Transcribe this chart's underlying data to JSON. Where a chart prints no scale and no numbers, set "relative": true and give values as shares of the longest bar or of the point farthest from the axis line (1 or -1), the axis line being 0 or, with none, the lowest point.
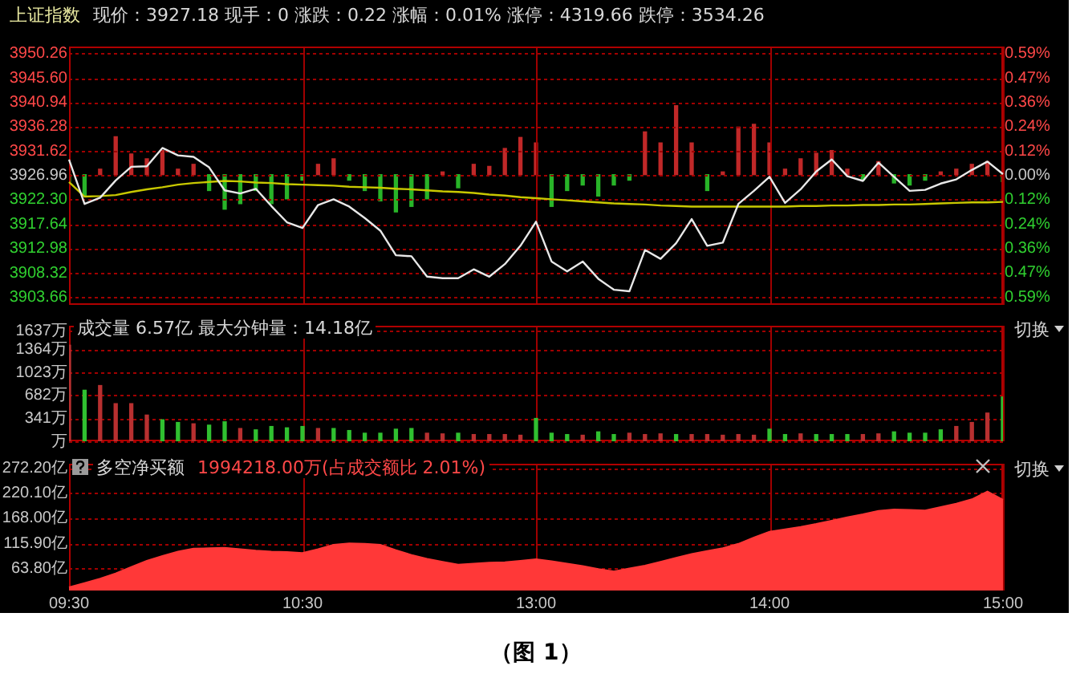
{
  "chart_data": [
    {
      "type": "line",
      "title": "上证指数",
      "subtitle": "现价：3927.18 现手：0 涨跌：0.22 涨幅：0.01% 涨停：4319.66 跌停：3534.26",
      "categories": [
        null,
        null,
        null,
        null,
        null,
        null,
        null,
        null,
        null,
        null,
        null,
        null,
        null,
        null,
        null,
        null,
        null,
        null,
        null,
        null,
        null,
        null,
        null,
        null,
        null,
        null,
        null,
        null,
        null,
        null,
        null,
        null,
        null,
        null,
        null,
        null,
        null,
        null,
        null,
        null,
        null,
        null,
        null,
        null,
        null,
        null,
        null,
        null,
        null,
        null,
        null,
        null,
        null,
        null,
        null,
        null,
        null,
        null,
        null,
        null,
        null
      ],
      "ylim": [
        3902.2,
        3951.6
      ],
      "yticks": [
        3903.66,
        3908.32,
        3912.98,
        3917.64,
        {
          "value": 3922.3,
          "label": "3922.30"
        },
        3926.96,
        3931.62,
        3936.28,
        3940.94,
        {
          "value": 3945.6,
          "label": "3945.60"
        },
        3950.26
      ],
      "y2lim": [
        -0.631,
        0.627
      ],
      "y2ticks": [
        {
          "value": -0.593,
          "label": "0.59%"
        },
        {
          "value": -0.474,
          "label": "0.47%"
        },
        {
          "value": -0.356,
          "label": "0.36%"
        },
        {
          "value": -0.237,
          "label": "0.24%"
        },
        {
          "value": -0.119,
          "label": "0.12%"
        },
        {
          "value": 0,
          "label": "0.00%"
        },
        {
          "value": 0.119,
          "label": "0.12%"
        },
        {
          "value": 0.237,
          "label": "0.24%"
        },
        {
          "value": 0.356,
          "label": "0.36%"
        },
        {
          "value": 0.474,
          "label": "0.47%"
        },
        {
          "value": 0.593,
          "label": "0.59%"
        }
      ],
      "grid": true,
      "tick_labels": "y",
      "series": [
        {
          "color": "#e8e8e8",
          "values": [
            3930.0,
            3921.5,
            3922.7,
            3926.0,
            3928.6,
            3928.7,
            3932.2,
            3930.8,
            3930.5,
            3928.5,
            3924.1,
            3923.5,
            3924.4,
            3921.1,
            3918.0,
            3916.9,
            3921.3,
            3922.4,
            3921.0,
            3918.8,
            3916.4,
            3911.7,
            3911.5,
            3907.6,
            3907.3,
            3907.3,
            3909.0,
            3907.6,
            3910.0,
            3913.5,
            3918.1,
            3910.5,
            3908.6,
            3910.5,
            3907.2,
            3905.1,
            3904.8,
            3912.7,
            3911.0,
            3914.0,
            3918.6,
            3913.5,
            3914.1,
            3921.5,
            3924.0,
            3926.7,
            3921.7,
            3924.3,
            3927.7,
            3930.0,
            3926.8,
            3925.9,
            3929.4,
            3926.7,
            3924.0,
            3924.2,
            3925.4,
            3926.2,
            3928.0,
            3929.6,
            3927.2
          ]
        },
        {
          "color": "#c8c800",
          "values": [
            3925.7,
            3922.9,
            3923.0,
            3923.2,
            3923.8,
            3924.3,
            3924.7,
            3925.2,
            3925.5,
            3925.7,
            3925.9,
            3925.8,
            3925.6,
            3925.5,
            3925.3,
            3925.2,
            3925.1,
            3925.0,
            3924.8,
            3924.7,
            3924.6,
            3924.4,
            3924.3,
            3924.1,
            3923.9,
            3923.8,
            3923.6,
            3923.3,
            3923.1,
            3922.8,
            3922.6,
            3922.4,
            3922.2,
            3922.0,
            3921.8,
            3921.6,
            3921.5,
            3921.4,
            3921.2,
            3921.1,
            3921.0,
            3921.0,
            3921.0,
            3921.0,
            3921.0,
            3921.0,
            3921.0,
            3921.1,
            3921.1,
            3921.2,
            3921.2,
            3921.3,
            3921.3,
            3921.4,
            3921.4,
            3921.5,
            3921.6,
            3921.7,
            3921.8,
            3921.8,
            3921.9
          ]
        }
      ]
    },
    {
      "type": "bar",
      "relative": true,
      "tick_labels": false,
      "categories": [
        null,
        null,
        null,
        null,
        null,
        null,
        null,
        null,
        null,
        null,
        null,
        null,
        null,
        null,
        null,
        null,
        null,
        null,
        null,
        null,
        null,
        null,
        null,
        null,
        null,
        null,
        null,
        null,
        null,
        null,
        null,
        null,
        null,
        null,
        null,
        null,
        null,
        null,
        null,
        null,
        null,
        null,
        null,
        null,
        null,
        null,
        null,
        null,
        null,
        null,
        null,
        null,
        null,
        null,
        null,
        null,
        null,
        null,
        null,
        null,
        null
      ],
      "values": [
        -0.1,
        -0.3,
        0.08,
        0.55,
        0.3,
        0.23,
        0.35,
        0.08,
        0.15,
        -0.23,
        -0.5,
        -0.42,
        -0.23,
        -0.42,
        -0.35,
        -0.08,
        0.15,
        0.23,
        -0.08,
        -0.23,
        -0.38,
        -0.54,
        -0.46,
        -0.35,
        0.04,
        -0.19,
        0.15,
        0.12,
        0.38,
        0.54,
        0.46,
        -0.46,
        -0.23,
        -0.15,
        -0.31,
        -0.15,
        -0.08,
        0.62,
        0.46,
        1,
        0.46,
        -0.23,
        0.04,
        0.69,
        0.73,
        0.46,
        0.08,
        0.23,
        0.31,
        0.35,
        0.08,
        -0.08,
        0.19,
        -0.12,
        -0.15,
        -0.08,
        0.04,
        0.08,
        0.15,
        0.19,
        -0.1
      ],
      "colors": [
        "#28b428",
        "#28b428",
        "#c02828",
        "#c02828",
        "#c02828",
        "#c02828",
        "#c02828",
        "#c02828",
        "#c02828",
        "#28b428",
        "#28b428",
        "#28b428",
        "#28b428",
        "#28b428",
        "#28b428",
        "#28b428",
        "#c02828",
        "#c02828",
        "#28b428",
        "#28b428",
        "#28b428",
        "#28b428",
        "#28b428",
        "#28b428",
        "#c02828",
        "#28b428",
        "#c02828",
        "#c02828",
        "#c02828",
        "#c02828",
        "#c02828",
        "#28b428",
        "#28b428",
        "#28b428",
        "#28b428",
        "#28b428",
        "#28b428",
        "#c02828",
        "#c02828",
        "#c02828",
        "#c02828",
        "#28b428",
        "#c02828",
        "#c02828",
        "#c02828",
        "#c02828",
        "#c02828",
        "#c02828",
        "#c02828",
        "#c02828",
        "#c02828",
        "#28b428",
        "#c02828",
        "#28b428",
        "#28b428",
        "#28b428",
        "#c02828",
        "#c02828",
        "#c02828",
        "#c02828",
        "#28b428"
      ]
    },
    {
      "type": "bar",
      "title": "成交量 6.57亿 最大分钟量：14.18亿",
      "annotations": [
        "切换"
      ],
      "grid": true,
      "tick_labels": "y",
      "categories": [
        null,
        null,
        null,
        null,
        null,
        null,
        null,
        null,
        null,
        null,
        null,
        null,
        null,
        null,
        null,
        null,
        null,
        null,
        null,
        null,
        null,
        null,
        null,
        null,
        null,
        null,
        null,
        null,
        null,
        null,
        null,
        null,
        null,
        null,
        null,
        null,
        null,
        null,
        null,
        null,
        null,
        null,
        null,
        null,
        null,
        null,
        null,
        null,
        null,
        null,
        null,
        null,
        null,
        null,
        null,
        null,
        null,
        null,
        null,
        null,
        null
      ],
      "ylim": [
        0,
        1720
      ],
      "yticks": [
        {
          "value": 0,
          "label": "万"
        },
        {
          "value": 341,
          "label": "341万"
        },
        {
          "value": 682,
          "label": "682万"
        },
        {
          "value": 1023,
          "label": "1023万"
        },
        {
          "value": 1364,
          "label": "1364万"
        },
        {
          "value": 1637,
          "label": "1637万"
        }
      ],
      "values": [
        1430,
        760,
        830,
        560,
        560,
        390,
        320,
        280,
        260,
        240,
        290,
        190,
        170,
        220,
        200,
        220,
        190,
        190,
        160,
        120,
        120,
        180,
        190,
        120,
        110,
        120,
        100,
        100,
        100,
        90,
        340,
        120,
        100,
        90,
        140,
        100,
        120,
        100,
        110,
        100,
        100,
        100,
        90,
        100,
        90,
        180,
        100,
        110,
        100,
        100,
        100,
        100,
        110,
        140,
        120,
        120,
        170,
        220,
        280,
        420,
        660
      ],
      "colors": [
        "#b83030",
        "#30c030",
        "#b83030",
        "#b83030",
        "#b83030",
        "#b83030",
        "#30c030",
        "#30c030",
        "#b83030",
        "#30c030",
        "#30c030",
        "#b83030",
        "#30c030",
        "#30c030",
        "#30c030",
        "#30c030",
        "#b83030",
        "#30c030",
        "#30c030",
        "#30c030",
        "#30c030",
        "#30c030",
        "#30c030",
        "#b83030",
        "#b83030",
        "#30c030",
        "#b83030",
        "#b83030",
        "#b83030",
        "#b83030",
        "#30c030",
        "#30c030",
        "#30c030",
        "#b83030",
        "#30c030",
        "#30c030",
        "#b83030",
        "#b83030",
        "#b83030",
        "#30c030",
        "#b83030",
        "#b83030",
        "#b83030",
        "#b83030",
        "#b83030",
        "#30c030",
        "#30c030",
        "#b83030",
        "#30c030",
        "#30c030",
        "#30c030",
        "#b83030",
        "#b83030",
        "#30c030",
        "#30c030",
        "#30c030",
        "#30c030",
        "#b83030",
        "#b83030",
        "#b83030",
        "#30c030"
      ]
    },
    {
      "type": "area",
      "title": "多空净买额",
      "subtitle": "1994218.00万(占成交额比 2.01%)",
      "annotations": [
        "切换",
        "（图 1）"
      ],
      "grid": true,
      "categories": [
        "09:30",
        null,
        null,
        null,
        null,
        null,
        null,
        null,
        null,
        null,
        null,
        null,
        null,
        null,
        null,
        "10:30",
        null,
        null,
        null,
        null,
        null,
        null,
        null,
        null,
        null,
        null,
        null,
        null,
        null,
        null,
        "13:00",
        null,
        null,
        null,
        null,
        null,
        null,
        null,
        null,
        null,
        null,
        null,
        null,
        null,
        null,
        "14:00",
        null,
        null,
        null,
        null,
        null,
        null,
        null,
        null,
        null,
        null,
        null,
        null,
        null,
        null,
        "15:00"
      ],
      "ylim": [
        18.5,
        280.5
      ],
      "yticks": [
        {
          "value": 63.8,
          "label": "63.80亿"
        },
        {
          "value": 115.9,
          "label": "115.90亿"
        },
        {
          "value": 168,
          "label": "168.00亿"
        },
        {
          "value": 220.1,
          "label": "220.10亿"
        },
        {
          "value": 272.2,
          "label": "272.20亿"
        }
      ],
      "color": "#ff3838",
      "values": [
        25,
        34,
        43,
        54,
        67,
        80,
        90,
        99,
        105,
        106,
        107,
        104,
        101,
        99,
        98,
        96,
        104,
        113,
        116,
        115,
        113,
        102,
        92,
        84,
        78,
        72,
        74,
        76,
        77,
        80,
        83,
        79,
        74,
        69,
        63,
        58,
        64,
        70,
        78,
        86,
        94,
        100,
        106,
        115,
        128,
        140,
        145,
        150,
        156,
        163,
        170,
        176,
        183,
        186,
        185,
        184,
        191,
        198,
        207,
        223,
        206
      ]
    }
  ]
}
